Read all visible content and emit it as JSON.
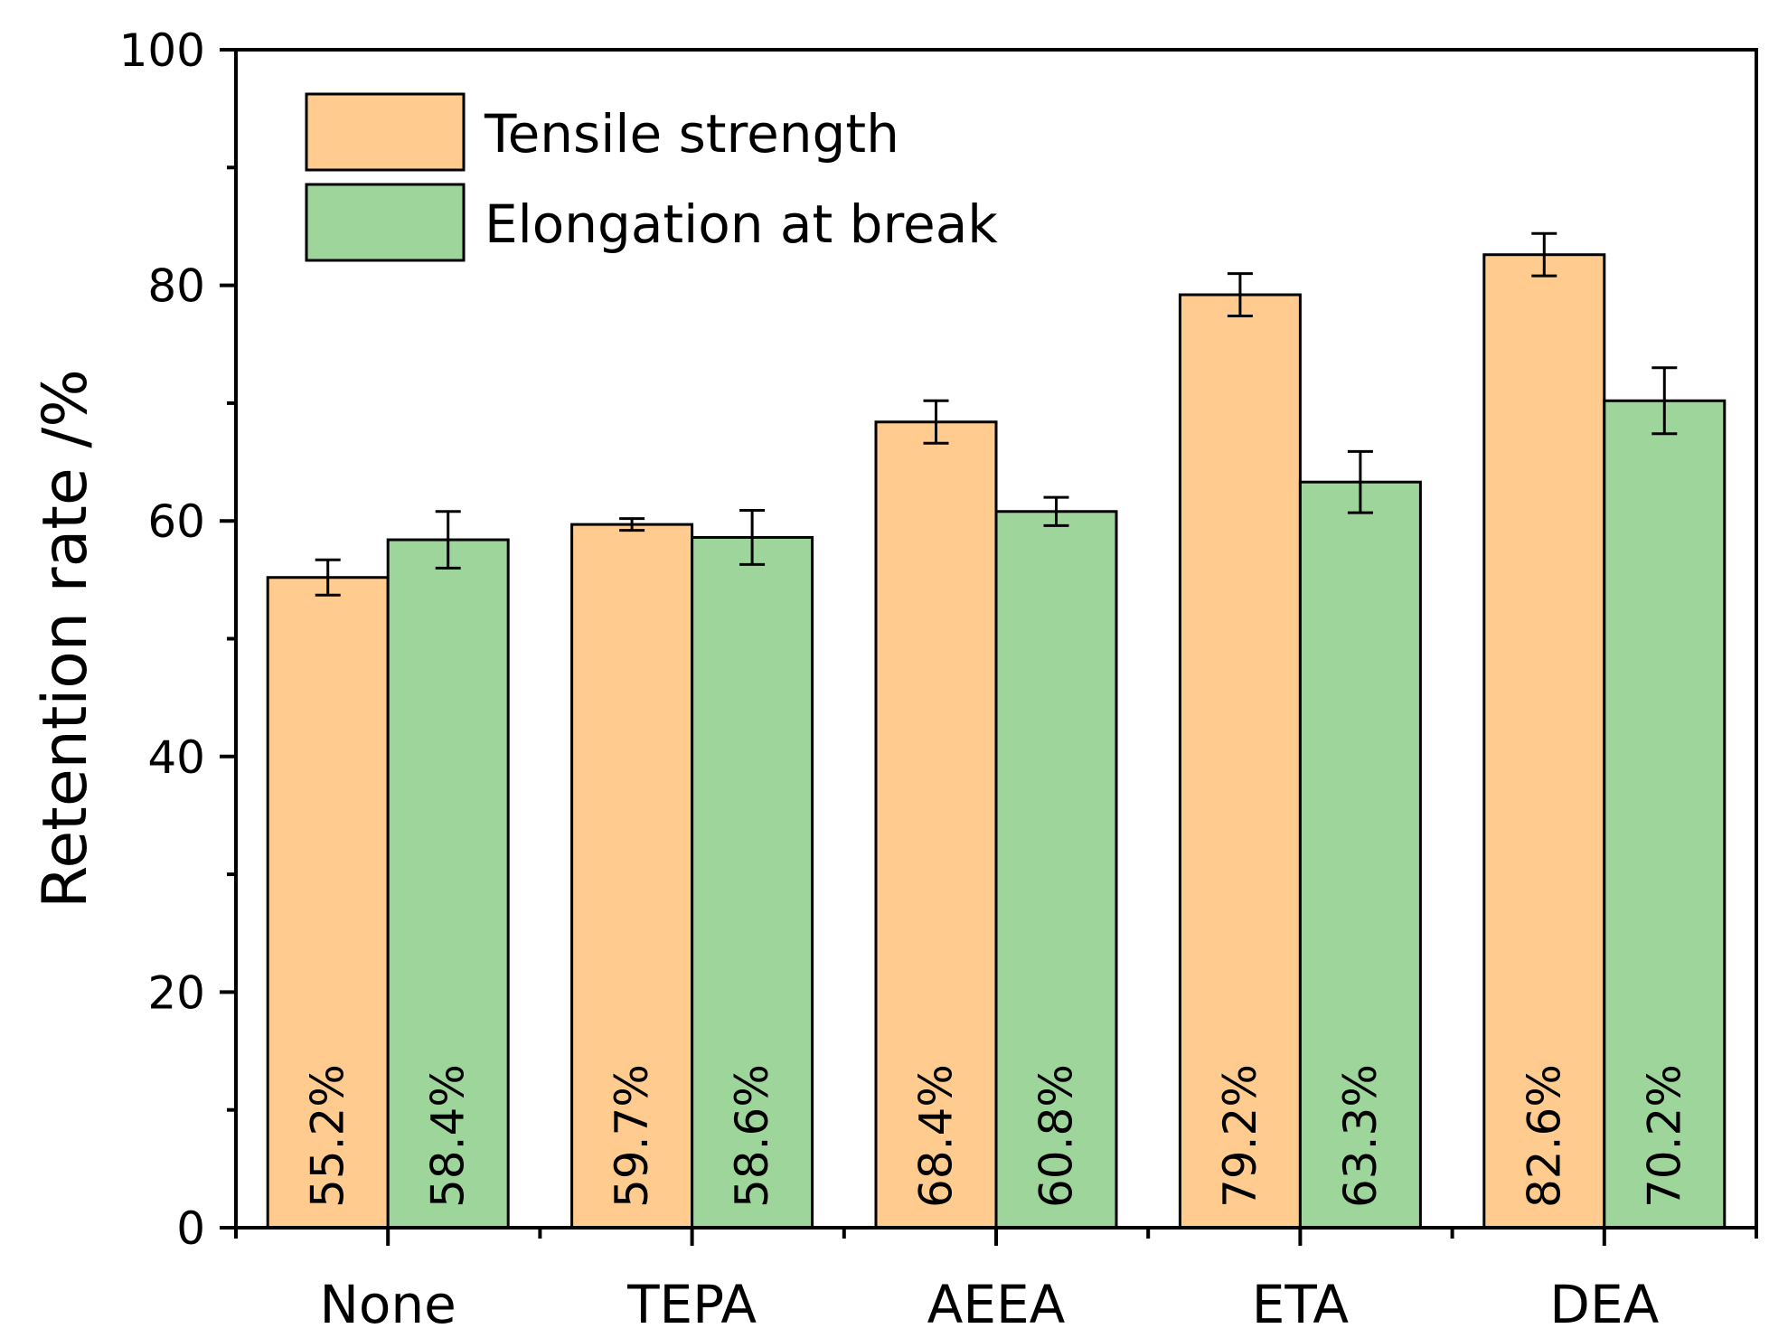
{
  "chart_data": {
    "type": "bar",
    "title": "",
    "xlabel": "",
    "ylabel": "Retention rate /%",
    "ylim": [
      0,
      100
    ],
    "yticks": [
      0,
      20,
      40,
      60,
      80,
      100
    ],
    "categories": [
      "None",
      "TEPA",
      "AEEA",
      "ETA",
      "DEA"
    ],
    "series": [
      {
        "name": "Tensile strength",
        "color": "#FFCB8E",
        "values": [
          55.2,
          59.7,
          68.4,
          79.2,
          82.6
        ],
        "errors": [
          1.5,
          0.5,
          1.8,
          1.8,
          1.8
        ],
        "labels": [
          "55.2%",
          "59.7%",
          "68.4%",
          "79.2%",
          "82.6%"
        ]
      },
      {
        "name": "Elongation at break",
        "color": "#9DD59B",
        "values": [
          58.4,
          58.6,
          60.8,
          63.3,
          70.2
        ],
        "errors": [
          2.4,
          2.3,
          1.2,
          2.6,
          2.8
        ],
        "labels": [
          "58.4%",
          "58.6%",
          "60.8%",
          "63.3%",
          "70.2%"
        ]
      }
    ],
    "legend_position": "top-left",
    "grid": false
  }
}
